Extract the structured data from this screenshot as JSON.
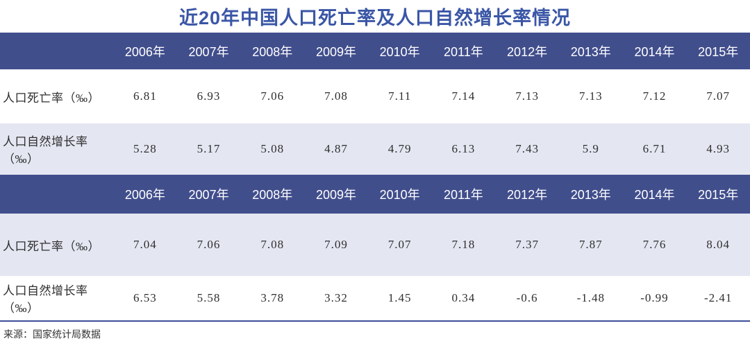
{
  "title": "近20年中国人口死亡率及人口自然增长率情况",
  "source": "来源：国家统计局数据",
  "colors": {
    "title_text": "#3A56A6",
    "header_bg": "#414E8C",
    "header_text": "#FFFFFF",
    "shaded_row_bg": "#E4E7F2",
    "body_text": "#2E2E2E",
    "divider": "#3D4C97"
  },
  "chart_data": [
    {
      "type": "table",
      "columns": [
        "2006年",
        "2007年",
        "2008年",
        "2009年",
        "2010年",
        "2011年",
        "2012年",
        "2013年",
        "2014年",
        "2015年"
      ],
      "rows": [
        {
          "label": "人口死亡率（‰）",
          "shaded": false,
          "values": [
            "6.81",
            "6.93",
            "7.06",
            "7.08",
            "7.11",
            "7.14",
            "7.13",
            "7.13",
            "7.12",
            "7.07"
          ]
        },
        {
          "label": "人口自然增长率（‰）",
          "shaded": true,
          "values": [
            "5.28",
            "5.17",
            "5.08",
            "4.87",
            "4.79",
            "6.13",
            "7.43",
            "5.9",
            "6.71",
            "4.93"
          ]
        }
      ]
    },
    {
      "type": "table",
      "columns": [
        "2006年",
        "2007年",
        "2008年",
        "2009年",
        "2010年",
        "2011年",
        "2012年",
        "2013年",
        "2014年",
        "2015年"
      ],
      "rows": [
        {
          "label": "人口死亡率（‰）",
          "shaded": true,
          "values": [
            "7.04",
            "7.06",
            "7.08",
            "7.09",
            "7.07",
            "7.18",
            "7.37",
            "7.87",
            "7.76",
            "8.04"
          ]
        },
        {
          "label": "人口自然增长率（‰）",
          "shaded": false,
          "values": [
            "6.53",
            "5.58",
            "3.78",
            "3.32",
            "1.45",
            "0.34",
            "-0.6",
            "-1.48",
            "-0.99",
            "-2.41"
          ]
        }
      ]
    }
  ]
}
